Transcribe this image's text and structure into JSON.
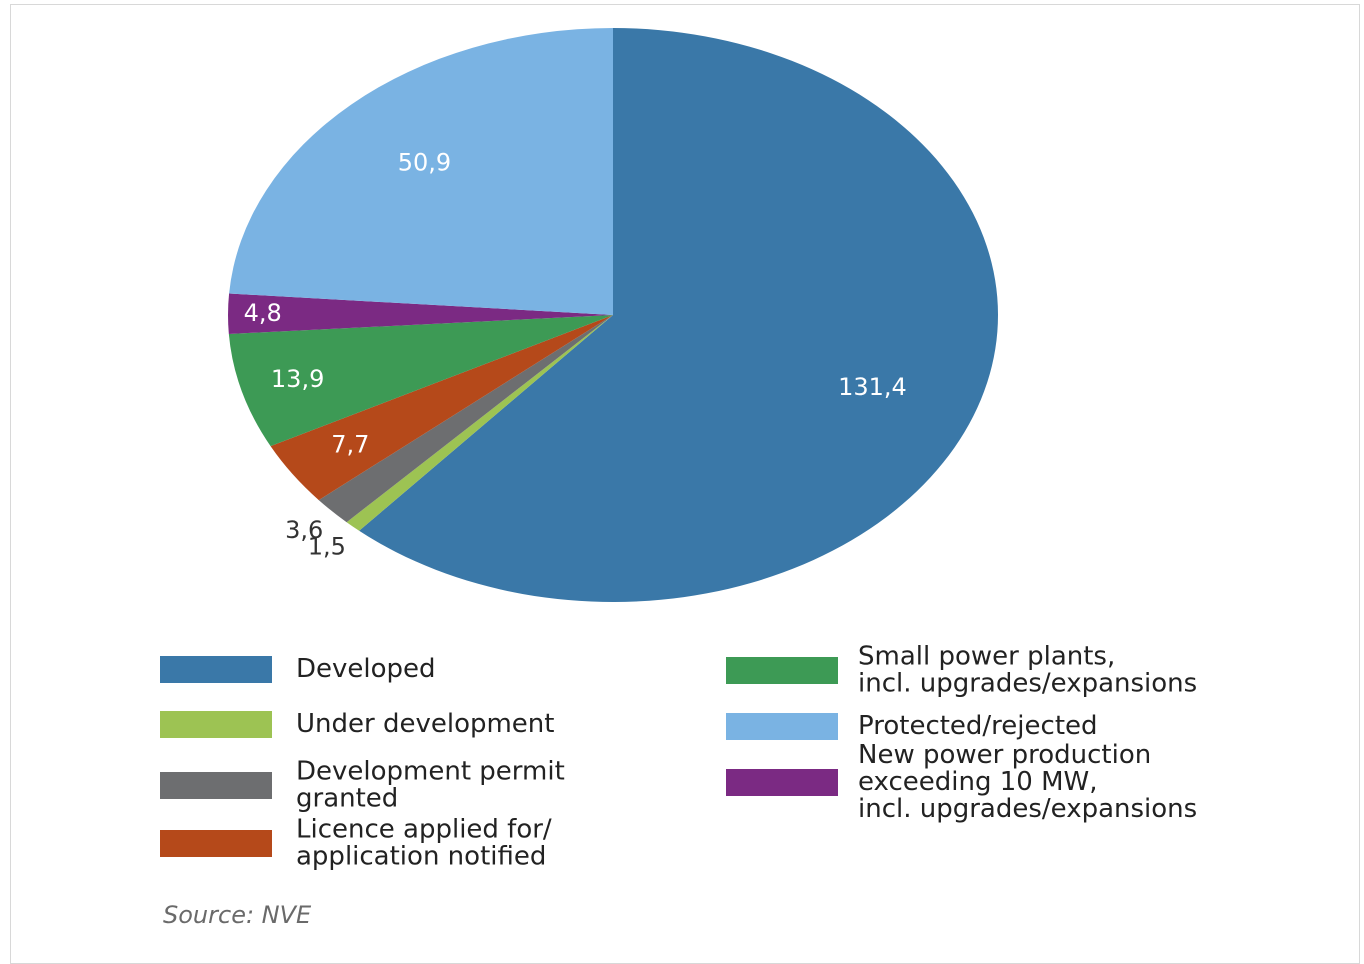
{
  "chart_data": {
    "type": "pie",
    "categories": [
      "Developed",
      "Under development",
      "Development permit\ngranted",
      "Licence applied for/\napplication notified",
      "Small power plants,\nincl. upgrades/expansions",
      "New power production\nexceeding 10 MW,\nincl. upgrades/expansions",
      "Protected/rejected"
    ],
    "values": [
      131.4,
      1.5,
      3.6,
      7.7,
      13.9,
      4.8,
      50.9
    ],
    "value_labels": [
      "131,4",
      "1,5",
      "3,6",
      "7,7",
      "13,9",
      "4,8",
      "50,9"
    ],
    "colors": [
      "#3a78a8",
      "#9dc353",
      "#6d6e70",
      "#b5491a",
      "#3d9a55",
      "#7b2a83",
      "#7ab3e3"
    ],
    "source": "Source: NVE"
  }
}
